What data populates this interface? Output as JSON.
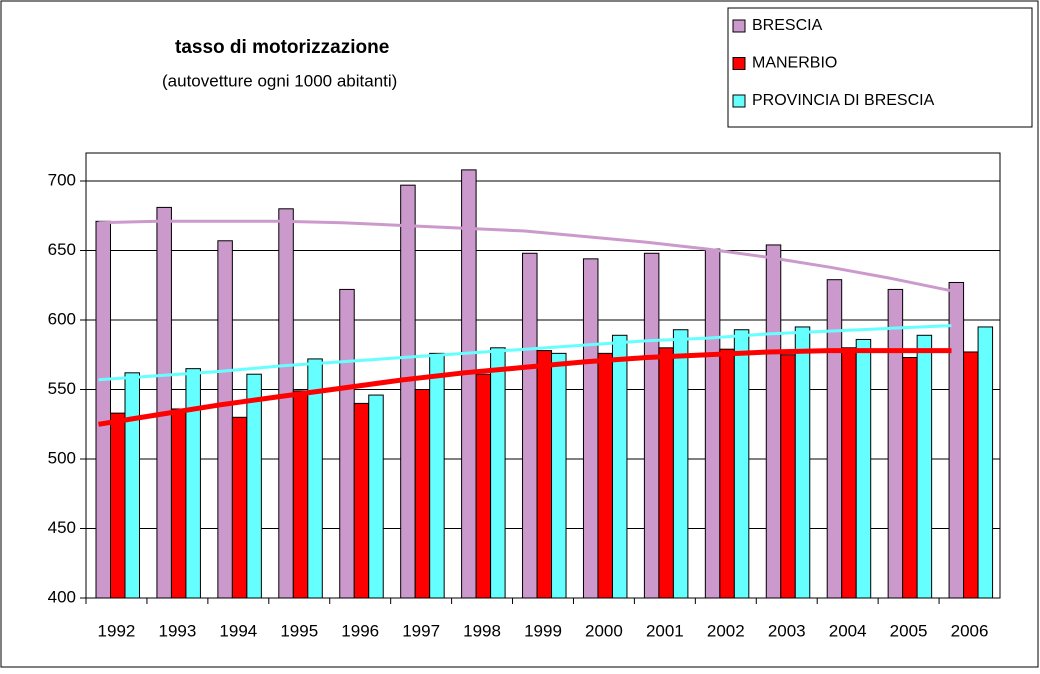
{
  "chart_data": {
    "type": "bar",
    "title": "tasso di motorizzazione",
    "subtitle": "(autovetture ogni 1000 abitanti)",
    "categories": [
      "1992",
      "1993",
      "1994",
      "1995",
      "1996",
      "1997",
      "1998",
      "1999",
      "2000",
      "2001",
      "2002",
      "2003",
      "2004",
      "2005",
      "2006"
    ],
    "series": [
      {
        "name": "BRESCIA",
        "color": "#cc99cc",
        "values": [
          671,
          681,
          657,
          680,
          622,
          697,
          708,
          648,
          644,
          648,
          651,
          654,
          629,
          622,
          627
        ],
        "trend": [
          670,
          671,
          671,
          671,
          670,
          668,
          666,
          664,
          660,
          656,
          651,
          645,
          638,
          630,
          621
        ]
      },
      {
        "name": "MANERBIO",
        "color": "#ff0000",
        "values": [
          533,
          536,
          530,
          549,
          540,
          550,
          561,
          578,
          576,
          580,
          579,
          575,
          580,
          573,
          577
        ],
        "trend": [
          525,
          532,
          539,
          545,
          551,
          557,
          562,
          566,
          570,
          573,
          575,
          577,
          578,
          578,
          578
        ]
      },
      {
        "name": "PROVINCIA DI BRESCIA",
        "color": "#66ffff",
        "values": [
          562,
          565,
          561,
          572,
          546,
          576,
          580,
          576,
          589,
          593,
          593,
          595,
          586,
          589,
          595
        ],
        "trend": [
          557,
          560,
          563,
          567,
          570,
          573,
          576,
          579,
          582,
          585,
          587,
          590,
          592,
          594,
          596
        ]
      }
    ],
    "ylim": [
      400,
      700
    ],
    "yticks": [
      400,
      450,
      500,
      550,
      600,
      650,
      700
    ],
    "grid": true,
    "legend": "top-right"
  }
}
